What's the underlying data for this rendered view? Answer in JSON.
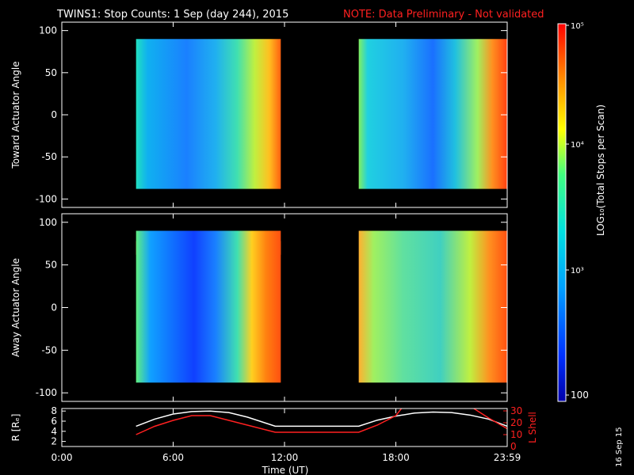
{
  "header": {
    "title": "TWINS1: Stop Counts:  1 Sep (day 244), 2015",
    "note": "NOTE: Data Preliminary - Not validated",
    "note_color": "#ff2020"
  },
  "chart_data": [
    {
      "type": "heatmap",
      "ylabel": "Toward Actuator Angle",
      "ylim": [
        -110,
        110
      ],
      "yticks": [
        "100",
        "50",
        "0",
        "-50",
        "-100"
      ],
      "data_blocks": [
        {
          "start_h": 4.0,
          "end_h": 11.8,
          "angle_range": [
            -88,
            90
          ]
        },
        {
          "start_h": 16.0,
          "end_h": 24.0,
          "angle_range": [
            -88,
            90
          ]
        }
      ]
    },
    {
      "type": "heatmap",
      "ylabel": "Away Actuator Angle",
      "ylim": [
        -110,
        110
      ],
      "yticks": [
        "100",
        "50",
        "0",
        "-50",
        "-100"
      ],
      "data_blocks": [
        {
          "start_h": 4.0,
          "end_h": 11.8,
          "angle_range": [
            -88,
            90
          ]
        },
        {
          "start_h": 16.0,
          "end_h": 24.0,
          "angle_range": [
            -88,
            90
          ]
        }
      ]
    },
    {
      "type": "line",
      "ylabel_left": "R [Rₑ]",
      "ylabel_right": "L Shell",
      "yticks_left": [
        "8",
        "6",
        "4",
        "2"
      ],
      "yticks_right": [
        "30",
        "20",
        "10",
        "0"
      ],
      "ylim_left": [
        1,
        8.5
      ],
      "ylim_right": [
        0,
        32
      ],
      "series": [
        {
          "name": "R [Rₑ]",
          "color": "#ffffff",
          "axis": "left",
          "x": [
            4,
            5,
            6,
            7,
            8,
            9,
            10,
            11.5,
            12,
            14,
            16,
            17,
            18,
            19,
            20,
            21,
            22,
            23,
            24
          ],
          "y": [
            5.0,
            6.4,
            7.4,
            7.9,
            8.0,
            7.7,
            6.8,
            5.0,
            5.0,
            5.0,
            5.0,
            6.2,
            7.0,
            7.6,
            7.8,
            7.7,
            7.2,
            6.4,
            5.0
          ]
        },
        {
          "name": "L Shell",
          "color": "#ff2020",
          "axis": "right",
          "x": [
            4,
            5,
            6,
            7,
            8,
            9,
            10,
            11.5,
            12,
            14,
            16,
            17,
            18,
            18.3
          ],
          "y": [
            10,
            17,
            22,
            26,
            26,
            22,
            18,
            12,
            12,
            12,
            12,
            18,
            26,
            32
          ]
        },
        {
          "name": "L Shell b",
          "color": "#ff2020",
          "axis": "right",
          "x": [
            22.2,
            23,
            24
          ],
          "y": [
            32,
            24,
            15
          ]
        }
      ]
    }
  ],
  "xaxis": {
    "label": "Time (UT)",
    "ticks": [
      {
        "h": 0,
        "label": "0:00"
      },
      {
        "h": 6,
        "label": "6:00"
      },
      {
        "h": 12,
        "label": "12:00"
      },
      {
        "h": 18,
        "label": "18:00"
      },
      {
        "h": 24,
        "label": "23:59"
      }
    ]
  },
  "colorbar": {
    "label": "LOG₁₀(Total Stops per Scan)",
    "ticks": [
      "10⁵",
      "10⁴",
      "10³",
      "100"
    ]
  },
  "footer": {
    "date_stamp": "16 Sep 15"
  }
}
